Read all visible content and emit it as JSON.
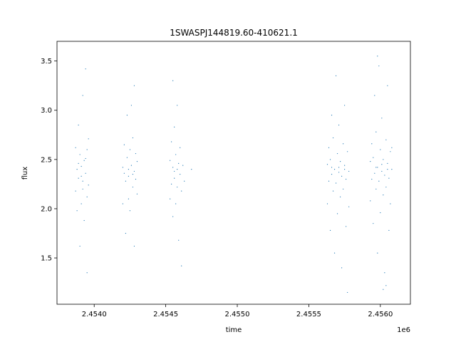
{
  "chart_data": {
    "type": "scatter",
    "title": "1SWASPJ144819.60-410621.1",
    "xlabel": "time",
    "ylabel": "flux",
    "x_offset_label": "1e6",
    "xlim": [
      2.45374,
      2.45621
    ],
    "ylim": [
      1.03,
      3.7
    ],
    "x_ticks": [
      2.454,
      2.4545,
      2.455,
      2.4555,
      2.456
    ],
    "x_tick_labels": [
      "2.4540",
      "2.4545",
      "2.4550",
      "2.4555",
      "2.4560"
    ],
    "y_ticks": [
      1.5,
      2.0,
      2.5,
      3.0,
      3.5
    ],
    "y_tick_labels": [
      "1.5",
      "2.0",
      "2.5",
      "3.0",
      "3.5"
    ],
    "grid": false,
    "legend": "none",
    "marker_color": "#1f77b4",
    "series": [
      {
        "points": [
          [
            2.45387,
            2.62
          ],
          [
            2.45387,
            2.18
          ],
          [
            2.45388,
            2.4
          ],
          [
            2.45388,
            1.98
          ],
          [
            2.45389,
            2.85
          ],
          [
            2.45389,
            2.31
          ],
          [
            2.4539,
            2.55
          ],
          [
            2.4539,
            1.62
          ],
          [
            2.45391,
            2.43
          ],
          [
            2.45391,
            2.05
          ],
          [
            2.45392,
            3.15
          ],
          [
            2.45392,
            2.28
          ],
          [
            2.45393,
            2.49
          ],
          [
            2.45393,
            1.88
          ],
          [
            2.45394,
            3.42
          ],
          [
            2.45394,
            2.36
          ],
          [
            2.45395,
            2.6
          ],
          [
            2.45395,
            2.12
          ],
          [
            2.45395,
            1.35
          ],
          [
            2.45396,
            2.24
          ],
          [
            2.45396,
            2.71
          ],
          [
            2.45389,
            2.46
          ],
          [
            2.45392,
            2.2
          ],
          [
            2.45394,
            2.51
          ],
          [
            2.45391,
            2.33
          ],
          [
            2.4542,
            2.42
          ],
          [
            2.4542,
            2.05
          ],
          [
            2.45421,
            2.65
          ],
          [
            2.45422,
            2.28
          ],
          [
            2.45422,
            1.75
          ],
          [
            2.45423,
            2.52
          ],
          [
            2.45423,
            2.95
          ],
          [
            2.45424,
            2.33
          ],
          [
            2.45424,
            2.1
          ],
          [
            2.45425,
            2.6
          ],
          [
            2.45425,
            1.98
          ],
          [
            2.45426,
            3.05
          ],
          [
            2.45426,
            2.44
          ],
          [
            2.45427,
            2.22
          ],
          [
            2.45427,
            2.72
          ],
          [
            2.45428,
            1.62
          ],
          [
            2.45428,
            2.38
          ],
          [
            2.45428,
            3.25
          ],
          [
            2.45429,
            2.3
          ],
          [
            2.45429,
            2.56
          ],
          [
            2.4543,
            2.15
          ],
          [
            2.4543,
            2.48
          ],
          [
            2.45424,
            2.4
          ],
          [
            2.45427,
            2.35
          ],
          [
            2.45421,
            2.36
          ],
          [
            2.45453,
            2.49
          ],
          [
            2.45453,
            2.1
          ],
          [
            2.45454,
            2.68
          ],
          [
            2.45454,
            2.25
          ],
          [
            2.45455,
            1.92
          ],
          [
            2.45455,
            2.42
          ],
          [
            2.45456,
            2.83
          ],
          [
            2.45456,
            2.31
          ],
          [
            2.45457,
            2.55
          ],
          [
            2.45457,
            2.05
          ],
          [
            2.45458,
            3.05
          ],
          [
            2.45458,
            2.22
          ],
          [
            2.45459,
            2.46
          ],
          [
            2.45459,
            1.68
          ],
          [
            2.4546,
            2.35
          ],
          [
            2.4546,
            2.62
          ],
          [
            2.45461,
            1.42
          ],
          [
            2.45461,
            2.18
          ],
          [
            2.45462,
            2.44
          ],
          [
            2.45468,
            2.4
          ],
          [
            2.45456,
            2.38
          ],
          [
            2.45458,
            2.4
          ],
          [
            2.45463,
            2.28
          ],
          [
            2.45455,
            3.3
          ],
          [
            2.45563,
            2.45
          ],
          [
            2.45563,
            2.05
          ],
          [
            2.45564,
            2.62
          ],
          [
            2.45564,
            2.28
          ],
          [
            2.45565,
            1.78
          ],
          [
            2.45565,
            2.5
          ],
          [
            2.45566,
            2.95
          ],
          [
            2.45566,
            2.35
          ],
          [
            2.45567,
            2.18
          ],
          [
            2.45567,
            2.72
          ],
          [
            2.45568,
            1.55
          ],
          [
            2.45568,
            2.4
          ],
          [
            2.45569,
            3.35
          ],
          [
            2.45569,
            2.26
          ],
          [
            2.4557,
            2.56
          ],
          [
            2.4557,
            1.95
          ],
          [
            2.45571,
            2.42
          ],
          [
            2.45571,
            2.85
          ],
          [
            2.45572,
            2.12
          ],
          [
            2.45572,
            2.48
          ],
          [
            2.45573,
            1.4
          ],
          [
            2.45573,
            2.33
          ],
          [
            2.45574,
            2.66
          ],
          [
            2.45574,
            2.2
          ],
          [
            2.45575,
            3.05
          ],
          [
            2.45575,
            2.44
          ],
          [
            2.45576,
            1.82
          ],
          [
            2.45576,
            2.3
          ],
          [
            2.45577,
            2.58
          ],
          [
            2.45577,
            1.15
          ],
          [
            2.45578,
            2.38
          ],
          [
            2.45578,
            2.02
          ],
          [
            2.45566,
            2.42
          ],
          [
            2.45571,
            2.37
          ],
          [
            2.45575,
            2.4
          ],
          [
            2.45593,
            2.48
          ],
          [
            2.45593,
            2.08
          ],
          [
            2.45594,
            2.66
          ],
          [
            2.45594,
            2.3
          ],
          [
            2.45595,
            1.85
          ],
          [
            2.45595,
            2.52
          ],
          [
            2.45596,
            3.15
          ],
          [
            2.45596,
            2.36
          ],
          [
            2.45597,
            2.2
          ],
          [
            2.45597,
            2.78
          ],
          [
            2.45598,
            1.55
          ],
          [
            2.45598,
            2.42
          ],
          [
            2.45599,
            3.45
          ],
          [
            2.45599,
            2.28
          ],
          [
            2.456,
            2.6
          ],
          [
            2.456,
            1.96
          ],
          [
            2.45601,
            2.45
          ],
          [
            2.45601,
            2.92
          ],
          [
            2.45602,
            2.14
          ],
          [
            2.45602,
            2.5
          ],
          [
            2.45603,
            1.35
          ],
          [
            2.45603,
            2.34
          ],
          [
            2.45604,
            2.7
          ],
          [
            2.45604,
            2.22
          ],
          [
            2.45605,
            3.25
          ],
          [
            2.45605,
            2.46
          ],
          [
            2.45606,
            1.78
          ],
          [
            2.45606,
            2.31
          ],
          [
            2.45607,
            2.58
          ],
          [
            2.45607,
            2.05
          ],
          [
            2.45608,
            2.4
          ],
          [
            2.45608,
            2.62
          ],
          [
            2.45597,
            2.42
          ],
          [
            2.45601,
            2.38
          ],
          [
            2.45605,
            2.4
          ],
          [
            2.45598,
            3.55
          ],
          [
            2.45602,
            1.18
          ],
          [
            2.45604,
            1.22
          ]
        ]
      }
    ]
  }
}
